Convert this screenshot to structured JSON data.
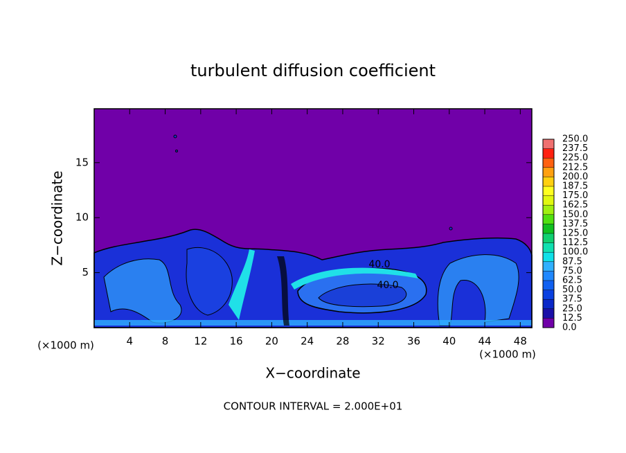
{
  "chart_data": {
    "type": "contour",
    "title": "turbulent diffusion coefficient",
    "x_label": "X−coordinate",
    "y_label": "Z−coordinate",
    "x_unit_left": "(×1000 m)",
    "x_unit_right": "(×1000 m)",
    "footnote": "CONTOUR INTERVAL = 2.000E+01",
    "contour_labels": [
      "40.0",
      "40.0"
    ],
    "xlim": [
      0,
      49.3
    ],
    "xticks": [
      4,
      8,
      12,
      16,
      20,
      24,
      28,
      32,
      36,
      40,
      44,
      48
    ],
    "ylim": [
      0,
      19.9
    ],
    "yticks": [
      5,
      10,
      15
    ],
    "colorbar": {
      "ticks": [
        {
          "value": 0,
          "label": "0.0"
        },
        {
          "value": 12.5,
          "label": "12.5"
        },
        {
          "value": 25,
          "label": "25.0"
        },
        {
          "value": 37.5,
          "label": "37.5"
        },
        {
          "value": 50,
          "label": "50.0"
        },
        {
          "value": 62.5,
          "label": "62.5"
        },
        {
          "value": 75,
          "label": "75.0"
        },
        {
          "value": 87.5,
          "label": "87.5"
        },
        {
          "value": 100,
          "label": "100.0"
        },
        {
          "value": 112.5,
          "label": "112.5"
        },
        {
          "value": 125,
          "label": "125.0"
        },
        {
          "value": 137.5,
          "label": "137.5"
        },
        {
          "value": 150,
          "label": "150.0"
        },
        {
          "value": 162.5,
          "label": "162.5"
        },
        {
          "value": 175,
          "label": "175.0"
        },
        {
          "value": 187.5,
          "label": "187.5"
        },
        {
          "value": 200,
          "label": "200.0"
        },
        {
          "value": 212.5,
          "label": "212.5"
        },
        {
          "value": 225,
          "label": "225.0"
        },
        {
          "value": 237.5,
          "label": "237.5"
        },
        {
          "value": 250,
          "label": "250.0"
        }
      ],
      "colors": [
        "#7000a8",
        "#1a10a8",
        "#0a28c8",
        "#0a40e0",
        "#1060f0",
        "#2088ff",
        "#30b0ff",
        "#10e0e8",
        "#10e0b0",
        "#10d070",
        "#10c020",
        "#50e010",
        "#a0f010",
        "#e0f810",
        "#ffff20",
        "#ffd010",
        "#ffa010",
        "#ff6010",
        "#ff2010",
        "#f07070"
      ]
    }
  }
}
